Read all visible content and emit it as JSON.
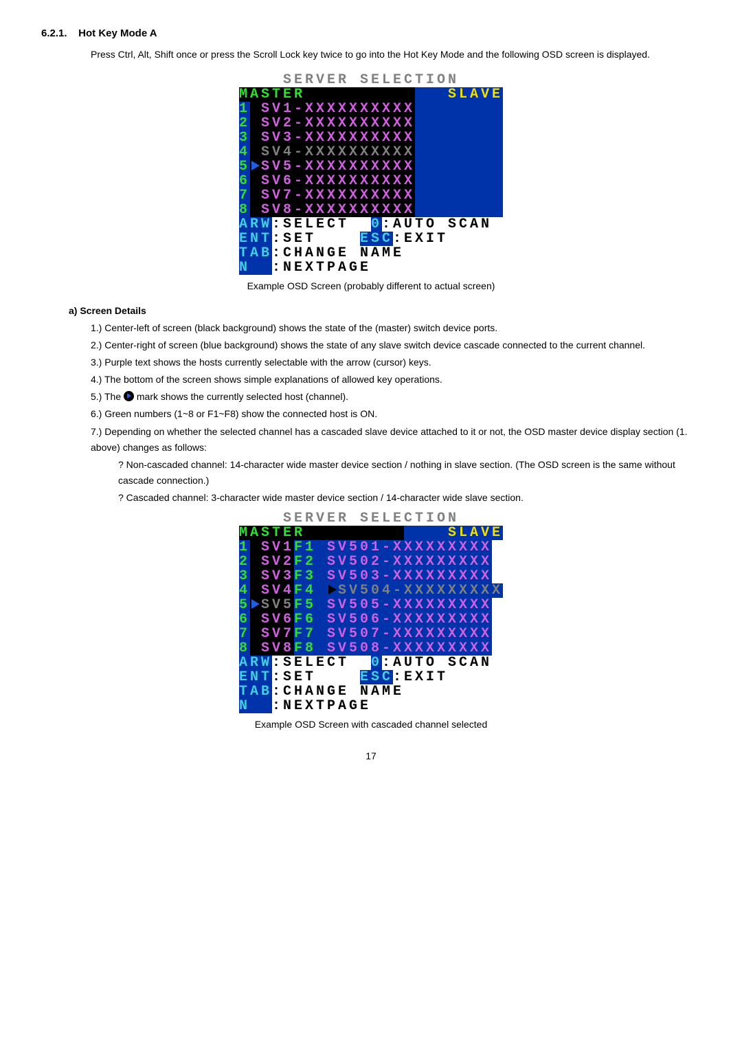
{
  "heading": {
    "num": "6.2.1.",
    "title": "Hot Key Mode A"
  },
  "intro": "Press Ctrl, Alt, Shift once or press the Scroll Lock key twice to go into the Hot Key Mode and the following OSD screen is displayed.",
  "osd1": {
    "title": "SERVER SELECTION",
    "left_label": "MASTER",
    "right_label": "SLAVE",
    "rows": [
      {
        "n": "1",
        "code": "SV1",
        "name": "XXXXXXXXXX",
        "dim": false
      },
      {
        "n": "2",
        "code": "SV2",
        "name": "XXXXXXXXXX",
        "dim": false
      },
      {
        "n": "3",
        "code": "SV3",
        "name": "XXXXXXXXXX",
        "dim": false
      },
      {
        "n": "4",
        "code": "SV4",
        "name": "XXXXXXXXXX",
        "dim": true
      },
      {
        "n": "5",
        "code": "SV5",
        "name": "XXXXXXXXXX",
        "dim": false,
        "marker": true
      },
      {
        "n": "6",
        "code": "SV6",
        "name": "XXXXXXXXXX",
        "dim": false
      },
      {
        "n": "7",
        "code": "SV7",
        "name": "XXXXXXXXXX",
        "dim": false
      },
      {
        "n": "8",
        "code": "SV8",
        "name": "XXXXXXXXXX",
        "dim": false
      }
    ],
    "help": {
      "arw": "ARW",
      "arw_v": "SELECT",
      "zero": "0",
      "zero_v": "AUTO SCAN",
      "ent": "ENT",
      "ent_v": "SET",
      "esc": "ESC",
      "esc_v": "EXIT",
      "tab": "TAB",
      "tab_v": "CHANGE NAME",
      "n": "N",
      "n_v": "NEXTPAGE"
    }
  },
  "caption1": "Example OSD Screen (probably different to actual screen)",
  "subheading": "a) Screen Details",
  "details": [
    "1.) Center-left of screen (black background) shows the state of the (master) switch device ports.",
    "2.) Center-right of screen (blue background) shows the state of any slave switch device cascade connected to the current channel.",
    "3.) Purple text shows the hosts currently selectable with the arrow (cursor) keys.",
    "4.) The bottom of the screen shows simple explanations of allowed key operations.",
    "5.) The  mark shows the currently selected host (channel).",
    "6.) Green numbers (1~8 or F1~F8) show the connected host is ON.",
    "7.) Depending on whether the selected channel has a cascaded slave device attached to it or not, the OSD master device display section (1. above) changes as follows:"
  ],
  "details_sub": [
    "Non-cascaded channel: 14-character wide master device section / nothing in slave section. (The OSD screen is the same without cascade connection.)",
    "Cascaded channel: 3-character wide master device section / 14-character wide slave section."
  ],
  "osd2": {
    "title": "SERVER SELECTION",
    "left_label": "MASTER",
    "right_label": "SLAVE",
    "rows": [
      {
        "n": "1",
        "m": "SV1",
        "f": "F1",
        "s": "SV501",
        "name": "XXXXXXXXX",
        "dim_m": false,
        "dim_s": false
      },
      {
        "n": "2",
        "m": "SV2",
        "f": "F2",
        "s": "SV502",
        "name": "XXXXXXXXX",
        "dim_m": false,
        "dim_s": false
      },
      {
        "n": "3",
        "m": "SV3",
        "f": "F3",
        "s": "SV503",
        "name": "XXXXXXXXX",
        "dim_m": false,
        "dim_s": false
      },
      {
        "n": "4",
        "m": "SV4",
        "f": "F4",
        "s": "SV504",
        "name": "XXXXXXXXX",
        "dim_m": false,
        "dim_s": true,
        "marker_s": true
      },
      {
        "n": "5",
        "m": "SV5",
        "f": "F5",
        "s": "SV505",
        "name": "XXXXXXXXX",
        "dim_m": true,
        "dim_s": false,
        "marker_m": true
      },
      {
        "n": "6",
        "m": "SV6",
        "f": "F6",
        "s": "SV506",
        "name": "XXXXXXXXX",
        "dim_m": false,
        "dim_s": false
      },
      {
        "n": "7",
        "m": "SV7",
        "f": "F7",
        "s": "SV507",
        "name": "XXXXXXXXX",
        "dim_m": false,
        "dim_s": false
      },
      {
        "n": "8",
        "m": "SV8",
        "f": "F8",
        "s": "SV508",
        "name": "XXXXXXXXX",
        "dim_m": false,
        "dim_s": false
      }
    ]
  },
  "caption2": "Example OSD Screen with cascaded channel selected",
  "pagenum": "17"
}
